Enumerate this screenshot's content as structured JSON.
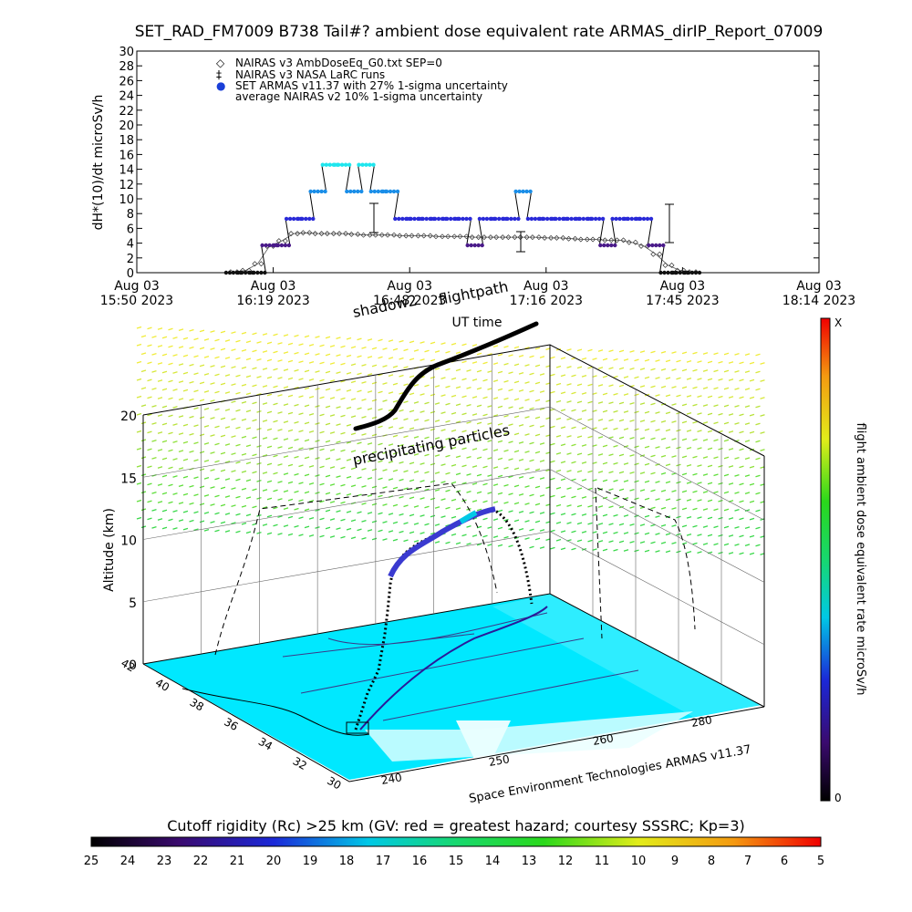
{
  "title": "SET_RAD_FM7009  B738 Tail#? ambient dose equivalent rate ARMAS_dirIP_Report_07009",
  "chart_data": [
    {
      "type": "scatter",
      "ylabel": "dH*(10)/dt microSv/h",
      "xlabel": "UT time",
      "ylim": [
        0,
        30
      ],
      "yticks": [
        "0",
        "2",
        "4",
        "6",
        "8",
        "10",
        "12",
        "14",
        "16",
        "18",
        "20",
        "22",
        "24",
        "26",
        "28",
        "30"
      ],
      "xticks": [
        {
          "date": "Aug 03",
          "time": "15:50 2023"
        },
        {
          "date": "Aug 03",
          "time": "16:19 2023"
        },
        {
          "date": "Aug 03",
          "time": "16:48 2023"
        },
        {
          "date": "Aug 03",
          "time": "17:16 2023"
        },
        {
          "date": "Aug 03",
          "time": "17:45 2023"
        },
        {
          "date": "Aug 03",
          "time": "18:14 2023"
        }
      ],
      "legend": [
        {
          "symbol": "◇",
          "label": "NAIRAS v3 AmbDoseEq_G0.txt SEP=0"
        },
        {
          "symbol": "‡",
          "label": "NAIRAS v3 NASA LaRC runs"
        },
        {
          "symbol": "●",
          "label": "SET ARMAS v11.37 with 27% 1-sigma uncertainty"
        },
        {
          "symbol": "",
          "label": "average NAIRAS v2 10% 1-sigma uncertainty"
        }
      ],
      "legend_position": "top-left",
      "series": [
        {
          "name": "SET ARMAS v11.37 with 27% 1-sigma uncertainty",
          "x_minutes": [
            0,
            4,
            8,
            12,
            16,
            20,
            24,
            28,
            32,
            36,
            40,
            44,
            48,
            52,
            56,
            60,
            64,
            68,
            72,
            76,
            80,
            84,
            88,
            92,
            96,
            100,
            104,
            108,
            112,
            116,
            120,
            124,
            128,
            132,
            136,
            140,
            144,
            148,
            152
          ],
          "y": [
            0,
            0,
            0,
            3.7,
            3.7,
            7.3,
            7.3,
            11,
            14.6,
            14.6,
            11,
            14.6,
            11,
            11,
            7.3,
            7.3,
            7.3,
            7.3,
            7.3,
            7.3,
            3.7,
            7.3,
            7.3,
            7.3,
            11,
            7.3,
            7.3,
            7.3,
            7.3,
            7.3,
            7.3,
            3.7,
            7.3,
            7.3,
            7.3,
            3.7,
            0,
            0,
            0
          ]
        },
        {
          "name": "NAIRAS v3 AmbDoseEq_G0.txt SEP=0",
          "x_minutes": [
            0,
            4,
            8,
            12,
            16,
            20,
            24,
            28,
            32,
            36,
            40,
            44,
            48,
            52,
            56,
            60,
            64,
            68,
            72,
            76,
            80,
            84,
            88,
            92,
            96,
            100,
            104,
            108,
            112,
            116,
            120,
            124,
            128,
            132,
            136,
            140,
            144,
            148,
            152
          ],
          "y": [
            0.1,
            0.3,
            1.2,
            3.6,
            4.3,
            5.3,
            5.4,
            5.3,
            5.3,
            5.3,
            5.2,
            5.1,
            5.1,
            5.1,
            5,
            5,
            5,
            4.9,
            4.9,
            4.9,
            4.8,
            4.8,
            4.8,
            4.8,
            4.8,
            4.8,
            4.7,
            4.7,
            4.6,
            4.5,
            4.5,
            4.4,
            4.4,
            4.1,
            3.6,
            2.5,
            1,
            0.3,
            0.1
          ]
        }
      ]
    },
    {
      "type": "scatter",
      "title": "",
      "zlabel": "Altitude (km)",
      "zticks": [
        "0",
        "5",
        "10",
        "15",
        "20"
      ],
      "lat_ticks": [
        "30",
        "32",
        "34",
        "36",
        "38",
        "40",
        "42"
      ],
      "lon_ticks": [
        "240",
        "250",
        "260",
        "280"
      ],
      "annotations": [
        "shadow2",
        "flightpath",
        "precipitating particles"
      ],
      "credit": "Space Environment Technologies ARMAS v11.37",
      "colorbar": {
        "label": "flight ambient dose equivalent rate microSv/h",
        "top": "X",
        "bottom": "0"
      }
    },
    {
      "type": "heatmap",
      "title": "Cutoff rigidity (Rc) >25 km (GV: red = greatest hazard; courtesy SSSRC; Kp=3)",
      "ticks": [
        "25",
        "24",
        "23",
        "22",
        "21",
        "20",
        "19",
        "18",
        "17",
        "16",
        "15",
        "14",
        "13",
        "12",
        "11",
        "10",
        "9",
        "8",
        "7",
        "6",
        "5"
      ]
    }
  ]
}
